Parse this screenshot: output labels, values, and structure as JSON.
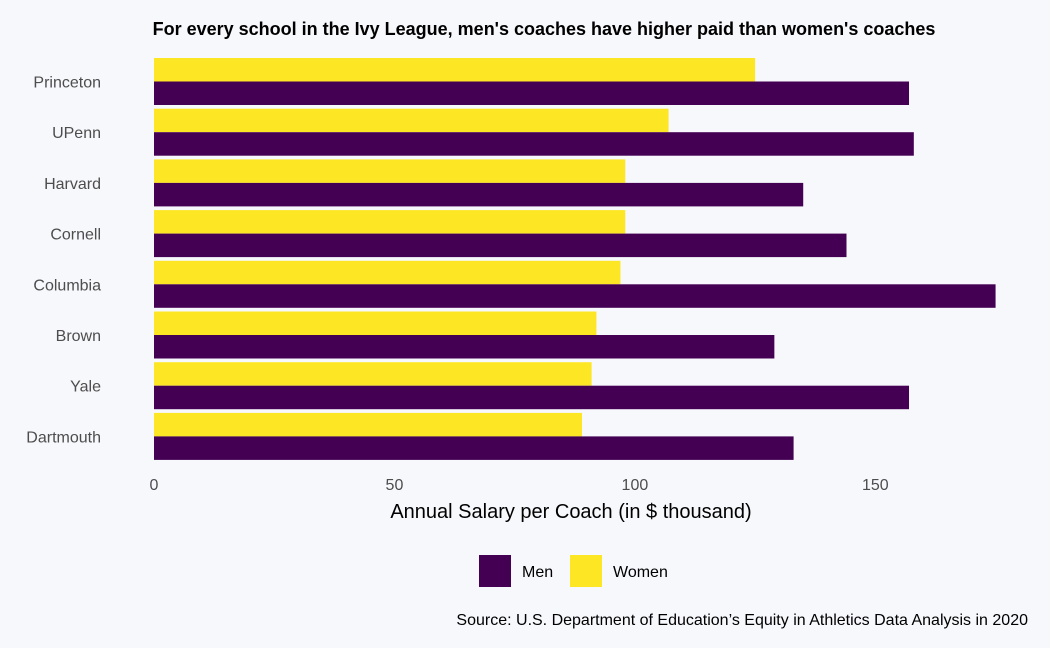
{
  "chart_data": {
    "type": "bar",
    "orientation": "horizontal",
    "title": "For every school in the Ivy League, men's coaches have higher paid than women's coaches",
    "xlabel": "Annual Salary per Coach (in $ thousand)",
    "ylabel": "",
    "categories": [
      "Princeton",
      "UPenn",
      "Harvard",
      "Cornell",
      "Columbia",
      "Brown",
      "Yale",
      "Dartmouth"
    ],
    "series": [
      {
        "name": "Men",
        "color": "#440154",
        "values": [
          157,
          158,
          135,
          144,
          175,
          129,
          157,
          133
        ]
      },
      {
        "name": "Women",
        "color": "#fde725",
        "values": [
          125,
          107,
          98,
          98,
          97,
          92,
          91,
          89
        ]
      }
    ],
    "xlim": [
      0,
      178
    ],
    "xticks": [
      0,
      50,
      100,
      150
    ],
    "xtick_labels": [
      "0",
      "50",
      "100",
      "150"
    ],
    "grid": false,
    "legend": {
      "position": "bottom",
      "entries": [
        "Men",
        "Women"
      ]
    },
    "source": "Source: U.S. Department of Education’s Equity in Athletics Data Analysis in 2020"
  }
}
